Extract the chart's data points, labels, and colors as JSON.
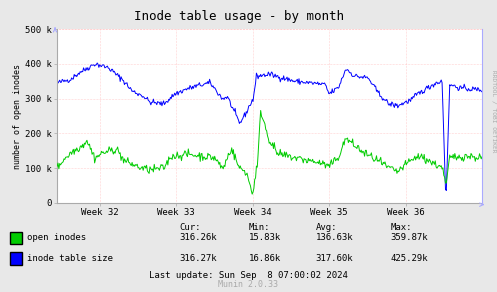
{
  "title": "Inode table usage - by month",
  "ylabel": "number of open inodes",
  "right_label": "RRDTOOL / TOBI OETIKER",
  "background_color": "#e8e8e8",
  "plot_bg_color": "#ffffff",
  "grid_color": "#cccccc",
  "grid_color_pink": "#ffaaaa",
  "x_labels": [
    "Week 32",
    "Week 33",
    "Week 34",
    "Week 35",
    "Week 36"
  ],
  "ylim": [
    0,
    500000
  ],
  "yticks": [
    0,
    100000,
    200000,
    300000,
    400000,
    500000
  ],
  "ytick_labels": [
    "0",
    "100 k",
    "200 k",
    "300 k",
    "400 k",
    "500 k"
  ],
  "legend_labels": [
    "open inodes",
    "inode table size"
  ],
  "legend_colors": [
    "#00cc00",
    "#0000ff"
  ],
  "stats_header": [
    "Cur:",
    "Min:",
    "Avg:",
    "Max:"
  ],
  "stats_row1": [
    "316.26k",
    "15.83k",
    "136.63k",
    "359.87k"
  ],
  "stats_row2": [
    "316.27k",
    "16.86k",
    "317.60k",
    "425.29k"
  ],
  "last_update": "Last update: Sun Sep  8 07:00:02 2024",
  "munin_version": "Munin 2.0.33",
  "green_color": "#00cc00",
  "blue_color": "#0000ff",
  "vline_color": "#ffaaaa",
  "spine_color": "#aaaaaa",
  "right_spine_color": "#aaaaff"
}
